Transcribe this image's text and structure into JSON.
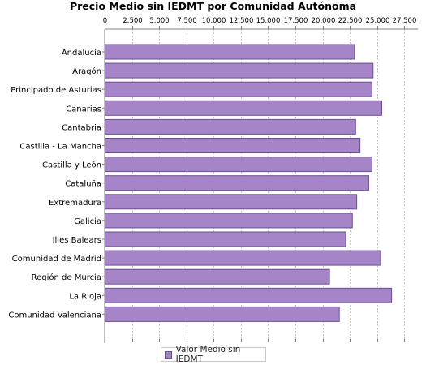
{
  "chart_data": {
    "type": "bar",
    "orientation": "horizontal",
    "title": "Precio Medio sin IEDMT por Comunidad Autónoma",
    "xlabel": "",
    "ylabel": "",
    "xlim": [
      0,
      28750
    ],
    "x_ticks": [
      "0",
      "2.500",
      "5.000",
      "7.500",
      "10.000",
      "12.500",
      "15.000",
      "17.500",
      "20.000",
      "22.500",
      "25.000",
      "27.500"
    ],
    "x_tick_values": [
      0,
      2500,
      5000,
      7500,
      10000,
      12500,
      15000,
      17500,
      20000,
      22500,
      25000,
      27500
    ],
    "axis_position": "top",
    "grid": true,
    "legend_position": "bottom",
    "categories": [
      "Andalucía",
      "Aragón",
      "Principado de Asturias",
      "Canarias",
      "Cantabria",
      "Castilla - La Mancha",
      "Castilla y León",
      "Cataluña",
      "Extremadura",
      "Galicia",
      "Illes Balears",
      "Comunidad de Madrid",
      "Región de Murcia",
      "La Rioja",
      "Comunidad Valenciana"
    ],
    "series": [
      {
        "name": "Valor Medio sin IEDMT",
        "color": "#a584c8",
        "values": [
          22900,
          24600,
          24500,
          25400,
          23000,
          23400,
          24500,
          24200,
          23100,
          22700,
          22100,
          25300,
          20600,
          26300,
          21500
        ]
      }
    ]
  }
}
